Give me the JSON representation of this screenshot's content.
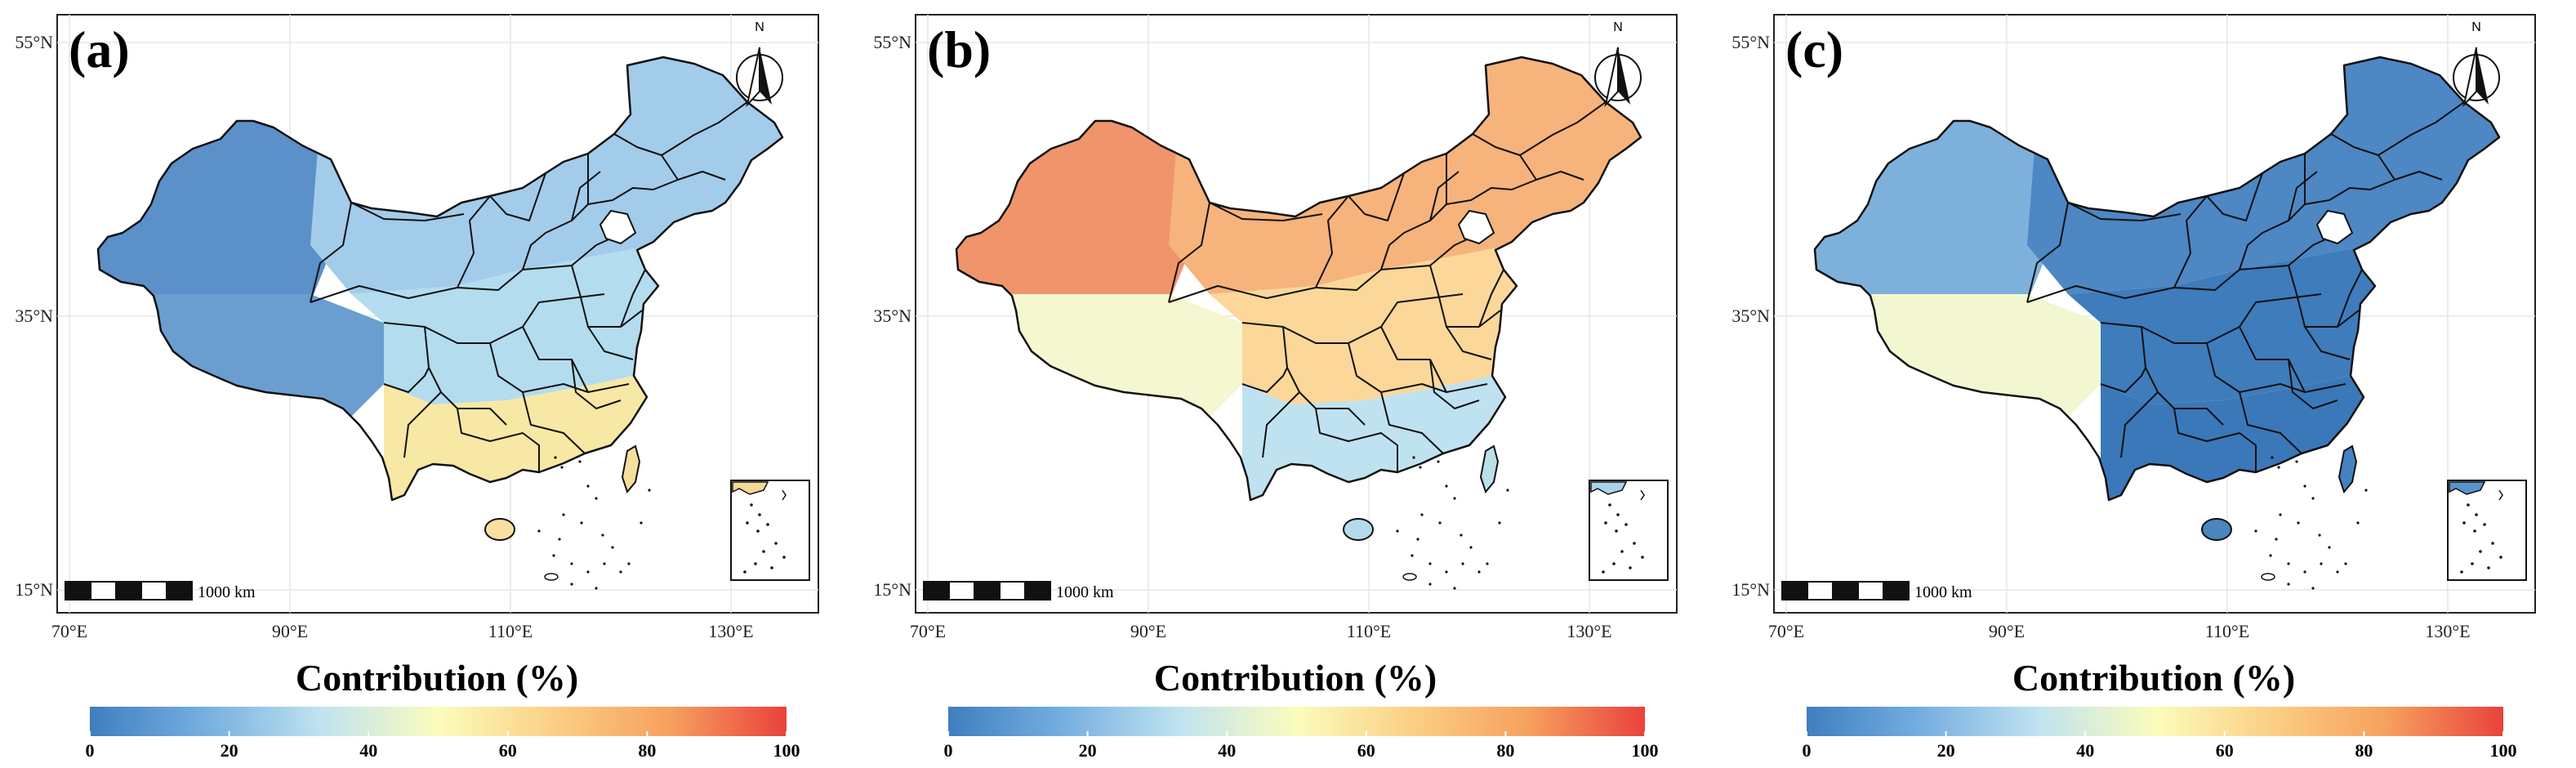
{
  "figure": {
    "north_label": "N",
    "scale_label": "1000 km",
    "lat_labels": [
      "55°N",
      "35°N",
      "15°N"
    ],
    "lon_labels": [
      "70°E",
      "90°E",
      "110°E",
      "130°E"
    ],
    "colorbar": {
      "title": "Contribution (%)",
      "ticks": [
        "0",
        "20",
        "40",
        "60",
        "80",
        "100"
      ],
      "colors": [
        "#3f7ec0",
        "#76afe0",
        "#c0e3f0",
        "#fbfcbc",
        "#fbcf85",
        "#f6a05e",
        "#e9423c"
      ]
    }
  },
  "panels": [
    {
      "label": "(a)",
      "west_color": "#5b90c8",
      "tibet_color": "#6a9ed0",
      "north_color": "#a2ccea",
      "center_color": "#b3dcef",
      "south_color": "#f7e8a5",
      "hainan_color": "#f9e0a0",
      "taiwan_color": "#f6df9a",
      "inset_color": "#f5d896"
    },
    {
      "label": "(b)",
      "west_color": "#f0946b",
      "tibet_color": "#f4f7cf",
      "north_color": "#f6b37c",
      "center_color": "#fbd79a",
      "south_color": "#bfe2f0",
      "hainan_color": "#b5dbea",
      "taiwan_color": "#b9dfe8",
      "inset_color": "#a8d3ea"
    },
    {
      "label": "(c)",
      "west_color": "#7eb0dc",
      "tibet_color": "#f2f6d1",
      "north_color": "#4d87c4",
      "center_color": "#3f7cbc",
      "south_color": "#3b78b9",
      "hainan_color": "#4a86c0",
      "taiwan_color": "#4582c0",
      "inset_color": "#5893cc"
    }
  ]
}
